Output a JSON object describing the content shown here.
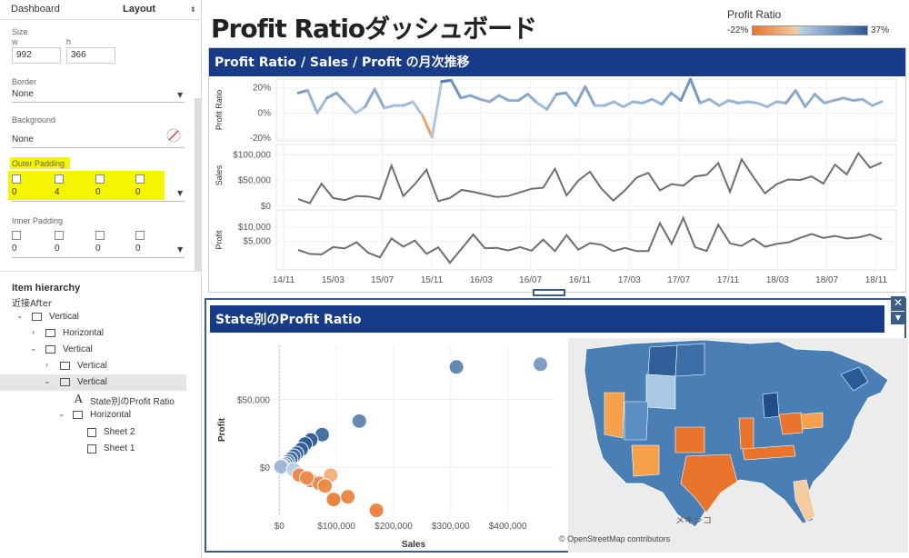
{
  "sidebar": {
    "tabs": [
      "Dashboard",
      "Layout"
    ],
    "size": {
      "label": "Size",
      "w_label": "w",
      "h_label": "h",
      "w": "992",
      "h": "366"
    },
    "border": {
      "label": "Border",
      "value": "None"
    },
    "background": {
      "label": "Background",
      "value": "None"
    },
    "outer_padding": {
      "label": "Outer Padding",
      "values": [
        "0",
        "4",
        "0",
        "0"
      ]
    },
    "inner_padding": {
      "label": "Inner Padding",
      "values": [
        "0",
        "0",
        "0",
        "0"
      ]
    },
    "item_hierarchy": {
      "title": "Item hierarchy",
      "subtitle": "近接After",
      "items": [
        {
          "label": "Vertical",
          "icon": "vertical-layout-icon"
        },
        {
          "label": "Horizontal",
          "icon": "horizontal-layout-icon"
        },
        {
          "label": "Vertical",
          "icon": "vertical-layout-icon"
        },
        {
          "label": "Vertical",
          "icon": "vertical-layout-icon"
        },
        {
          "label": "Vertical",
          "icon": "vertical-layout-icon"
        },
        {
          "label": "State別のProfit Ratio",
          "icon": "text-icon"
        },
        {
          "label": "Horizontal",
          "icon": "horizontal-layout-icon"
        },
        {
          "label": "Sheet 2",
          "icon": "sheet-icon"
        },
        {
          "label": "Sheet 1",
          "icon": "sheet-icon"
        }
      ]
    }
  },
  "dashboard": {
    "title": "Profit Ratioダッシュボード",
    "legend": {
      "title": "Profit Ratio",
      "min": "-22%",
      "max": "37%",
      "colors": [
        "#e9742c",
        "#f4cba0",
        "#b9cfe6",
        "#2c5a94"
      ]
    },
    "line_panel_title": "Profit Ratio / Sales / Profit の月次推移",
    "scatter_panel_title": "State別のProfit Ratio",
    "map_attribution": "© OpenStreetMap contributors",
    "map_label": "メキシコ"
  },
  "chart_data": [
    {
      "type": "line",
      "title": "Profit Ratio / Sales / Profit の月次推移",
      "x_tick_labels": [
        "14/11",
        "15/03",
        "15/07",
        "15/11",
        "16/03",
        "16/07",
        "16/11",
        "17/03",
        "17/07",
        "17/11",
        "18/03",
        "18/07",
        "18/11"
      ],
      "panels": [
        {
          "ylabel": "Profit Ratio",
          "y_ticks": [
            "20%",
            "0%",
            "-20%"
          ],
          "ylim": [
            -22,
            27
          ],
          "values": [
            16,
            18,
            0,
            12,
            16,
            8,
            0,
            5,
            19,
            4,
            6,
            6,
            9,
            -2,
            -19,
            25,
            26,
            12,
            14,
            11,
            9,
            14,
            10,
            10,
            15,
            8,
            3,
            15,
            16,
            6,
            21,
            6,
            6,
            9,
            5,
            9,
            8,
            11,
            7,
            16,
            10,
            27,
            8,
            11,
            6,
            10,
            8,
            9,
            8,
            5,
            9,
            8,
            18,
            5,
            15,
            8,
            10,
            12,
            10,
            11,
            6,
            9
          ]
        },
        {
          "ylabel": "Sales",
          "y_ticks": [
            "$100,000",
            "$50,000",
            "$0"
          ],
          "ylim": [
            0,
            120000
          ],
          "values": [
            14000,
            6000,
            44000,
            16000,
            12000,
            20000,
            19000,
            14000,
            79000,
            20000,
            43000,
            71000,
            10000,
            16000,
            32000,
            28000,
            23000,
            18000,
            20000,
            27000,
            34000,
            36000,
            73000,
            21000,
            50000,
            67000,
            34000,
            11000,
            31000,
            56000,
            65000,
            31000,
            43000,
            40000,
            58000,
            61000,
            84000,
            28000,
            91000,
            57000,
            25000,
            43000,
            52000,
            51000,
            58000,
            44000,
            81000,
            62000,
            103000,
            75000,
            85000
          ]
        },
        {
          "ylabel": "Profit",
          "y_ticks": [
            "$10,000",
            "$5,000"
          ],
          "ylim": [
            -5000,
            16000
          ],
          "values": [
            2000,
            600,
            400,
            3000,
            2500,
            4700,
            1000,
            -600,
            6000,
            3100,
            5300,
            600,
            2900,
            -2500,
            2400,
            7400,
            2600,
            2700,
            1800,
            3000,
            1700,
            5600,
            1600,
            7200,
            2100,
            4400,
            3800,
            1600,
            2700,
            1600,
            1600,
            11400,
            4100,
            13200,
            3000,
            1600,
            10800,
            4300,
            3400,
            5900,
            3100,
            4100,
            4600,
            6200,
            7600,
            6200,
            6900,
            6000,
            6400,
            7400,
            5700
          ]
        }
      ]
    },
    {
      "type": "scatter",
      "title": "State別のProfit Ratio",
      "xlabel": "Sales",
      "ylabel": "Profit",
      "x_ticks": [
        "$0",
        "$100,000",
        "$200,000",
        "$300,000",
        "$400,000"
      ],
      "y_ticks": [
        "$50,000",
        "$0"
      ],
      "xlim": [
        -10000,
        480000
      ],
      "ylim": [
        -35000,
        90000
      ],
      "points": [
        {
          "x": 457000,
          "y": 76000,
          "ratio": 0.17
        },
        {
          "x": 310000,
          "y": 74000,
          "ratio": 0.24
        },
        {
          "x": 140000,
          "y": 34000,
          "ratio": 0.24
        },
        {
          "x": 75000,
          "y": 24000,
          "ratio": 0.32
        },
        {
          "x": 55000,
          "y": 20000,
          "ratio": 0.37
        },
        {
          "x": 45000,
          "y": 17000,
          "ratio": 0.37
        },
        {
          "x": 38000,
          "y": 13000,
          "ratio": 0.35
        },
        {
          "x": 30000,
          "y": 10000,
          "ratio": 0.33
        },
        {
          "x": 25000,
          "y": 8000,
          "ratio": 0.32
        },
        {
          "x": 20000,
          "y": 6000,
          "ratio": 0.3
        },
        {
          "x": 15000,
          "y": 4000,
          "ratio": 0.26
        },
        {
          "x": 12000,
          "y": 2500,
          "ratio": 0.21
        },
        {
          "x": 8000,
          "y": 1500,
          "ratio": 0.18
        },
        {
          "x": 5000,
          "y": 500,
          "ratio": 0.1
        },
        {
          "x": 3000,
          "y": 200,
          "ratio": 0.07
        },
        {
          "x": 25000,
          "y": -2000,
          "ratio": 0.0
        },
        {
          "x": 35000,
          "y": -6000,
          "ratio": -0.17
        },
        {
          "x": 55000,
          "y": -10000,
          "ratio": -0.18
        },
        {
          "x": 70000,
          "y": -12000,
          "ratio": -0.17
        },
        {
          "x": 90000,
          "y": -6000,
          "ratio": -0.07
        },
        {
          "x": 80000,
          "y": -14000,
          "ratio": -0.17
        },
        {
          "x": 120000,
          "y": -22000,
          "ratio": -0.18
        },
        {
          "x": 170000,
          "y": -32000,
          "ratio": -0.19
        },
        {
          "x": 95000,
          "y": -24000,
          "ratio": -0.2
        },
        {
          "x": 48000,
          "y": -8000,
          "ratio": -0.16
        }
      ]
    }
  ]
}
